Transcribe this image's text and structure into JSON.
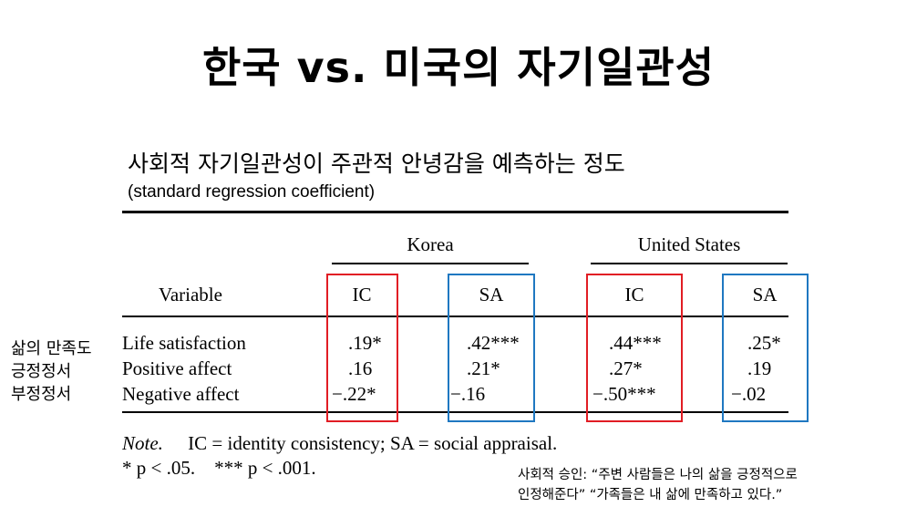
{
  "title": "한국 vs. 미국의 자기일관성",
  "subtitle": "사회적 자기일관성이 주관적 안녕감을 예측하는 정도",
  "subnote": "(standard regression coefficient)",
  "table": {
    "groups": [
      "Korea",
      "United States"
    ],
    "columns": [
      "Variable",
      "IC",
      "SA",
      "IC",
      "SA"
    ],
    "rows": [
      {
        "variable": "Life satisfaction",
        "values": [
          ".19*",
          ".42***",
          ".44***",
          ".25*"
        ]
      },
      {
        "variable": "Positive affect",
        "values": [
          ".16",
          ".21*",
          ".27*",
          ".19"
        ]
      },
      {
        "variable": "Negative affect",
        "values": [
          "−.22*",
          "−.16",
          "−.50***",
          "−.02"
        ]
      }
    ],
    "note_label": "Note.",
    "note_text": "IC = identity consistency; SA = social appraisal.",
    "significance": "* p < .05.    *** p < .001."
  },
  "side_labels": [
    "삶의 만족도",
    "긍정정서",
    "부정정서"
  ],
  "footnote": [
    "사회적 승인: “주변 사람들은 나의 삶을 긍정적으로",
    "인정해준다” “가족들은 내 삶에 만족하고 있다.”"
  ],
  "colors": {
    "ic_box": "#e11d24",
    "sa_box": "#1f78c1"
  }
}
